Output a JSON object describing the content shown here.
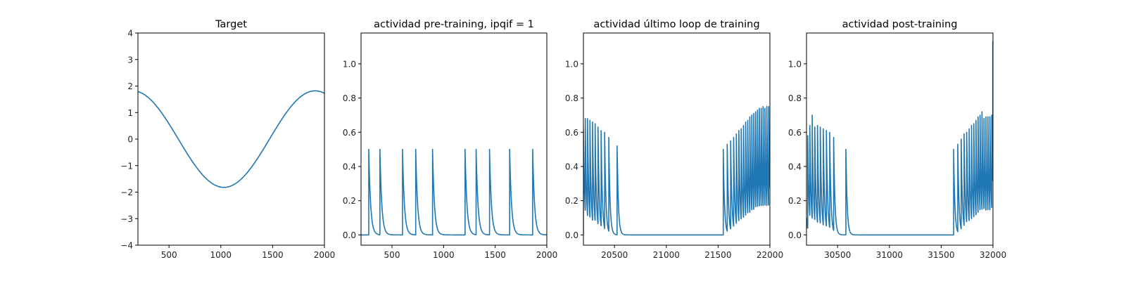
{
  "chart_data": [
    {
      "type": "line",
      "title": "Target",
      "xlim": [
        200,
        2000
      ],
      "ylim": [
        -4,
        4
      ],
      "xticks": [
        500,
        1000,
        1500,
        2000
      ],
      "yticks": [
        -4,
        -3,
        -2,
        -1,
        0,
        1,
        2,
        3,
        4
      ],
      "xtick_labels": [
        "500",
        "1000",
        "1500",
        "2000"
      ],
      "ytick_labels": [
        "−4",
        "−3",
        "−2",
        "−1",
        "0",
        "1",
        "2",
        "3",
        "4"
      ],
      "series": [
        {
          "color": "#1f77b4",
          "sine": {
            "amplitude": 1.82,
            "period": 1760,
            "phase_x": 1030,
            "trough": true
          }
        }
      ]
    },
    {
      "type": "line",
      "title": "actividad pre-training, ipqif = 1",
      "xlim": [
        200,
        2000
      ],
      "ylim": [
        -0.06,
        1.18
      ],
      "xticks": [
        500,
        1000,
        1500,
        2000
      ],
      "yticks": [
        0.0,
        0.2,
        0.4,
        0.6,
        0.8,
        1.0
      ],
      "xtick_labels": [
        "500",
        "1000",
        "1500",
        "2000"
      ],
      "ytick_labels": [
        "0.0",
        "0.2",
        "0.4",
        "0.6",
        "0.8",
        "1.0"
      ],
      "series": [
        {
          "color": "#1f77b4",
          "baseline": 0.0,
          "decay": 18,
          "spikes": [
            {
              "x": 275,
              "peak": 0.5
            },
            {
              "x": 383,
              "peak": 0.5
            },
            {
              "x": 602,
              "peak": 0.5
            },
            {
              "x": 730,
              "peak": 0.5
            },
            {
              "x": 893,
              "peak": 0.5
            },
            {
              "x": 1208,
              "peak": 0.5
            },
            {
              "x": 1315,
              "peak": 0.5
            },
            {
              "x": 1445,
              "peak": 0.5
            },
            {
              "x": 1640,
              "peak": 0.5
            },
            {
              "x": 1863,
              "peak": 0.5
            }
          ]
        }
      ]
    },
    {
      "type": "line",
      "title": "actividad último loop de training",
      "xlim": [
        20200,
        22000
      ],
      "ylim": [
        -0.06,
        1.18
      ],
      "xticks": [
        20500,
        21000,
        21500,
        22000
      ],
      "yticks": [
        0.0,
        0.2,
        0.4,
        0.6,
        0.8,
        1.0
      ],
      "xtick_labels": [
        "20500",
        "21000",
        "21500",
        "22000"
      ],
      "ytick_labels": [
        "0.0",
        "0.2",
        "0.4",
        "0.6",
        "0.8",
        "1.0"
      ],
      "series": [
        {
          "color": "#1f77b4",
          "baseline": 0.0,
          "decay": 12,
          "start_value": 0.62,
          "spikes": [
            {
              "x": 20200,
              "peak": 0.62
            },
            {
              "x": 20218,
              "peak": 0.68
            },
            {
              "x": 20240,
              "peak": 0.68
            },
            {
              "x": 20263,
              "peak": 0.67
            },
            {
              "x": 20288,
              "peak": 0.66
            },
            {
              "x": 20313,
              "peak": 0.65
            },
            {
              "x": 20341,
              "peak": 0.63
            },
            {
              "x": 20371,
              "peak": 0.61
            },
            {
              "x": 20405,
              "peak": 0.6
            },
            {
              "x": 20445,
              "peak": 0.57
            },
            {
              "x": 20525,
              "peak": 0.52
            },
            {
              "x": 21550,
              "peak": 0.5
            },
            {
              "x": 21588,
              "peak": 0.53
            },
            {
              "x": 21621,
              "peak": 0.55
            },
            {
              "x": 21650,
              "peak": 0.57
            },
            {
              "x": 21676,
              "peak": 0.59
            },
            {
              "x": 21700,
              "peak": 0.61
            },
            {
              "x": 21723,
              "peak": 0.62
            },
            {
              "x": 21745,
              "peak": 0.64
            },
            {
              "x": 21766,
              "peak": 0.66
            },
            {
              "x": 21786,
              "peak": 0.67
            },
            {
              "x": 21806,
              "peak": 0.69
            },
            {
              "x": 21825,
              "peak": 0.7
            },
            {
              "x": 21844,
              "peak": 0.71
            },
            {
              "x": 21862,
              "peak": 0.72
            },
            {
              "x": 21880,
              "peak": 0.73
            },
            {
              "x": 21898,
              "peak": 0.74
            },
            {
              "x": 21916,
              "peak": 0.74
            },
            {
              "x": 21934,
              "peak": 0.75
            },
            {
              "x": 21952,
              "peak": 0.74
            },
            {
              "x": 21970,
              "peak": 0.75
            },
            {
              "x": 21988,
              "peak": 0.75
            }
          ]
        }
      ]
    },
    {
      "type": "line",
      "title": "actividad post-training",
      "xlim": [
        30200,
        32000
      ],
      "ylim": [
        -0.06,
        1.18
      ],
      "xticks": [
        30500,
        31000,
        31500,
        32000
      ],
      "yticks": [
        0.0,
        0.2,
        0.4,
        0.6,
        0.8,
        1.0
      ],
      "xtick_labels": [
        "30500",
        "31000",
        "31500",
        "32000"
      ],
      "ytick_labels": [
        "0.0",
        "0.2",
        "0.4",
        "0.6",
        "0.8",
        "1.0"
      ],
      "series": [
        {
          "color": "#1f77b4",
          "baseline": 0.0,
          "decay": 12,
          "start_value": 0.1,
          "spikes": [
            {
              "x": 30212,
              "peak": 0.58
            },
            {
              "x": 30232,
              "peak": 0.64
            },
            {
              "x": 30255,
              "peak": 0.7
            },
            {
              "x": 30280,
              "peak": 0.63
            },
            {
              "x": 30306,
              "peak": 0.64
            },
            {
              "x": 30333,
              "peak": 0.63
            },
            {
              "x": 30362,
              "peak": 0.62
            },
            {
              "x": 30392,
              "peak": 0.61
            },
            {
              "x": 30424,
              "peak": 0.6
            },
            {
              "x": 30462,
              "peak": 0.57
            },
            {
              "x": 30580,
              "peak": 0.5
            },
            {
              "x": 31620,
              "peak": 0.5
            },
            {
              "x": 31660,
              "peak": 0.53
            },
            {
              "x": 31693,
              "peak": 0.56
            },
            {
              "x": 31721,
              "peak": 0.59
            },
            {
              "x": 31746,
              "peak": 0.6
            },
            {
              "x": 31770,
              "peak": 0.62
            },
            {
              "x": 31793,
              "peak": 0.64
            },
            {
              "x": 31815,
              "peak": 0.65
            },
            {
              "x": 31836,
              "peak": 0.67
            },
            {
              "x": 31856,
              "peak": 0.69
            },
            {
              "x": 31875,
              "peak": 0.7
            },
            {
              "x": 31894,
              "peak": 0.72
            },
            {
              "x": 31913,
              "peak": 0.68
            },
            {
              "x": 31932,
              "peak": 0.69
            },
            {
              "x": 31951,
              "peak": 0.69
            },
            {
              "x": 31970,
              "peak": 0.69
            },
            {
              "x": 31988,
              "peak": 0.7
            },
            {
              "x": 31998,
              "peak": 1.13
            }
          ]
        }
      ]
    }
  ]
}
